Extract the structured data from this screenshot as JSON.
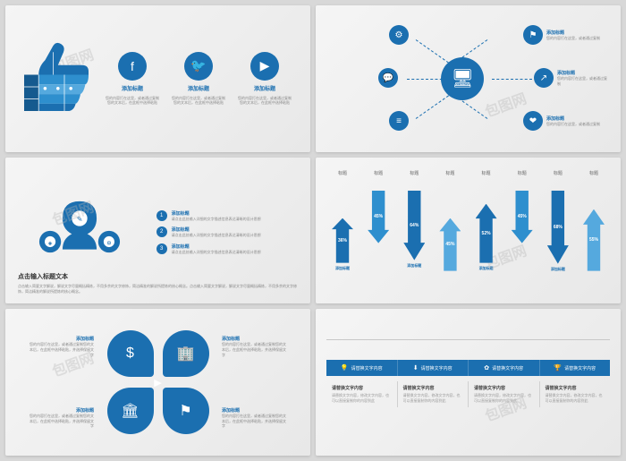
{
  "watermark": "包图网",
  "colors": {
    "primary": "#1b6fb0",
    "primaryLight": "#2e8fce",
    "primaryLighter": "#55a9de",
    "text": "#666666",
    "muted": "#888888"
  },
  "slide1": {
    "thumb_colors": [
      "#155a8f",
      "#1b6fb0",
      "#2e8fce",
      "#55a9de"
    ],
    "items": [
      {
        "icon": "f",
        "title": "添加标题",
        "desc": "您的内容打在这里，或者通过复制您的文本后，在此框中选择粘贴"
      },
      {
        "icon": "🐦",
        "title": "添加标题",
        "desc": "您的内容打在这里，或者通过复制您的文本后，在此框中选择粘贴"
      },
      {
        "icon": "▶",
        "title": "添加标题",
        "desc": "您的内容打在这里，或者通过复制您的文本后，在此框中选择粘贴"
      }
    ]
  },
  "slide2": {
    "center_icon": "🖥",
    "nodes": [
      {
        "icon": "⚙",
        "title": "添加标题",
        "desc": "您的内容打在这里，或者通过复制"
      },
      {
        "icon": "⚑",
        "title": "添加标题",
        "desc": "您的内容打在这里，或者通过复制"
      },
      {
        "icon": "💬",
        "title": "添加标题",
        "desc": "您的内容打在这里，或者通过复制"
      },
      {
        "icon": "↗",
        "title": "添加标题",
        "desc": "您的内容打在这里，或者通过复制"
      },
      {
        "icon": "≡",
        "title": "添加标题",
        "desc": "您的内容打在这里，或者通过复制"
      },
      {
        "icon": "❤",
        "title": "添加标题",
        "desc": "您的内容打在这里，或者通过复制"
      }
    ]
  },
  "slide3": {
    "shape_colors": [
      "#155a8f",
      "#1b6fb0",
      "#55a9de"
    ],
    "shape_icons": [
      "✎",
      "⚙",
      "◈"
    ],
    "items": [
      {
        "num": "1",
        "title": "添加标题",
        "desc": "请点击此处输入详细的文字描述信息表达清晰的设计思想"
      },
      {
        "num": "2",
        "title": "添加标题",
        "desc": "请点击此处输入详细的文字描述信息表达清晰的设计思想"
      },
      {
        "num": "3",
        "title": "添加标题",
        "desc": "请点击此处输入详细的文字描述信息表达清晰的设计思想"
      }
    ],
    "bottom_title": "点击输入标题文本",
    "bottom_desc": "点击输入简要文字解说，解说文字尽量概括精炼，不用多余的文字修饰，简洁精准的解说所提炼的核心概念。点击输入简要文字解说，解说文字尽量概括精炼，不用多余的文字修饰，简洁精准的解说所提炼的核心概念。"
  },
  "slide4": {
    "header": "标题",
    "arrows": [
      {
        "value": 36,
        "dir": "up",
        "color": "#1b6fb0",
        "label": "添加标题"
      },
      {
        "value": 45,
        "dir": "down",
        "color": "#2e8fce",
        "label": ""
      },
      {
        "value": 64,
        "dir": "down",
        "color": "#1b6fb0",
        "label": "添加标题"
      },
      {
        "value": 45,
        "dir": "up",
        "color": "#55a9de",
        "label": ""
      },
      {
        "value": 52,
        "dir": "up",
        "color": "#1b6fb0",
        "label": "添加标题"
      },
      {
        "value": 45,
        "dir": "down",
        "color": "#2e8fce",
        "label": ""
      },
      {
        "value": 68,
        "dir": "down",
        "color": "#1b6fb0",
        "label": "添加标题"
      },
      {
        "value": 55,
        "dir": "up",
        "color": "#55a9de",
        "label": ""
      }
    ]
  },
  "slide5": {
    "petals": [
      {
        "icon": "$",
        "title": "添加标题",
        "desc": "您的内容打在这里，或者通过复制您的文本后，在此框中选择粘贴，并选择保留文字"
      },
      {
        "icon": "🏢",
        "title": "添加标题",
        "desc": "您的内容打在这里，或者通过复制您的文本后，在此框中选择粘贴，并选择保留文字"
      },
      {
        "icon": "🏛",
        "title": "添加标题",
        "desc": "您的内容打在这里，或者通过复制您的文本后，在此框中选择粘贴，并选择保留文字"
      },
      {
        "icon": "⚑",
        "title": "添加标题",
        "desc": "您的内容打在这里，或者通过复制您的文本后，在此框中选择粘贴，并选择保留文字"
      }
    ],
    "center_icon": "▶"
  },
  "slide6": {
    "tabs": [
      {
        "icon": "💡",
        "label": "请替换文字内容"
      },
      {
        "icon": "⬇",
        "label": "请替换文字内容"
      },
      {
        "icon": "✿",
        "label": "请替换文字内容"
      },
      {
        "icon": "🏆",
        "label": "请替换文字内容"
      }
    ],
    "cols": [
      {
        "title": "请替换文字内容",
        "desc": "请替换文字内容，修改文字内容，也可以直接复制你的内容到此"
      },
      {
        "title": "请替换文字内容",
        "desc": "请替换文字内容，修改文字内容，也可以直接复制你的内容到此"
      },
      {
        "title": "请替换文字内容",
        "desc": "请替换文字内容，修改文字内容，也可以直接复制你的内容到此"
      },
      {
        "title": "请替换文字内容",
        "desc": "请替换文字内容，修改文字内容，也可以直接复制你的内容到此"
      }
    ]
  }
}
